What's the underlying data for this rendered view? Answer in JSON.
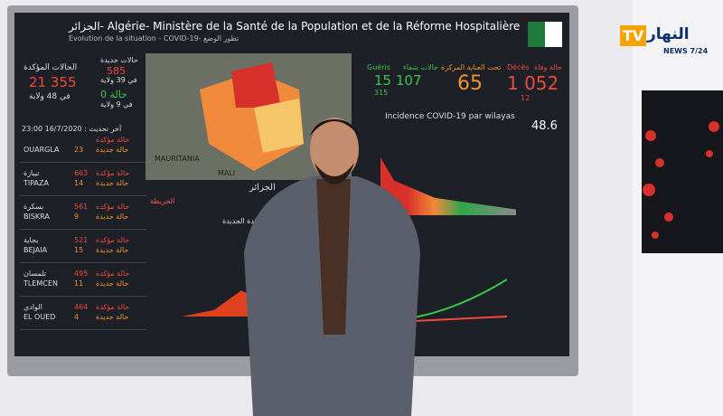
{
  "header": {
    "title": "الجزائر- Algérie- Ministère de la Santé de la Population et de la Réforme Hospitalière",
    "subtitle": "Evolution de la situation - COVID-19- تطور الوضع"
  },
  "logo": {
    "tv": "TV",
    "name": "النهار",
    "tagline": "NEWS 7/24"
  },
  "stats": {
    "confirmed_label": "الحالات المؤكدة",
    "confirmed": "21 355",
    "confirmed_sub": "في 48 ولاية",
    "new_label": "حالات جديدة",
    "new": "585",
    "new_sub": "في 39 ولاية",
    "zero": "0 حالة",
    "zero_sub": "في 9 ولاية",
    "recovered_label": "Guéris",
    "recovered_ar": "حالات شفاء",
    "recovered": "15 107",
    "recovered_new": "315",
    "icu_label": "تحت العناية المركزة",
    "icu": "65",
    "deaths_label": "Décès",
    "deaths_ar": "حالة وفاة",
    "deaths": "1 052",
    "deaths_new": "12"
  },
  "update": "آخر تحديث : 16/7/2020 23:00",
  "wilayas": [
    {
      "ar": "",
      "name": "OUARGLA",
      "confirmed": "",
      "new": "23"
    },
    {
      "ar": "تيبازة",
      "name": "TIPAZA",
      "confirmed": "663",
      "new": "14"
    },
    {
      "ar": "بسكرة",
      "name": "BISKRA",
      "confirmed": "561",
      "new": "9"
    },
    {
      "ar": "بجاية",
      "name": "BEJAIA",
      "confirmed": "521",
      "new": "15"
    },
    {
      "ar": "تلمسان",
      "name": "TLEMCEN",
      "confirmed": "495",
      "new": "11"
    },
    {
      "ar": "الوادي",
      "name": "EL OUED",
      "confirmed": "464",
      "new": "4"
    }
  ],
  "labels": {
    "confirmed_case": "حالة مؤكدة",
    "new_case": "حالة جديدة"
  },
  "map": {
    "country1": "MAURITANIA",
    "country2": "MALI"
  },
  "incidence": {
    "title": "Incidence COVID-19 par wilayas",
    "value": "48.6"
  },
  "panel": {
    "title": "الجزائر",
    "tab": "الخريطة",
    "chart_title": "الحالات المؤكدة الجديدة"
  }
}
